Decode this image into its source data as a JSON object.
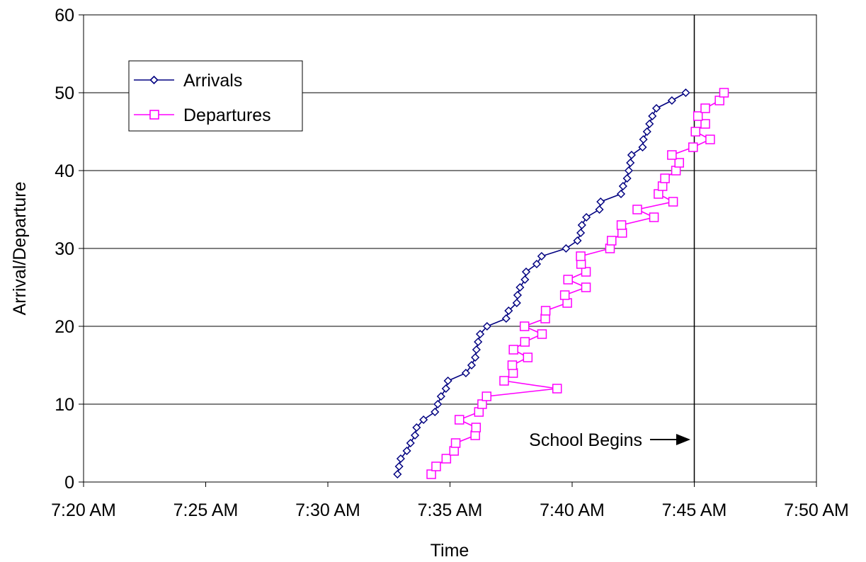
{
  "chart_data": {
    "type": "line",
    "xlabel": "Time",
    "ylabel": "Arrival/Departure",
    "xlim": [
      "7:20 AM",
      "7:50 AM"
    ],
    "ylim": [
      0,
      60
    ],
    "x_ticks": [
      "7:20 AM",
      "7:25 AM",
      "7:30 AM",
      "7:35 AM",
      "7:40 AM",
      "7:45 AM",
      "7:50 AM"
    ],
    "y_ticks": [
      0,
      10,
      20,
      30,
      40,
      50,
      60
    ],
    "grid": "horizontal",
    "legend": "top-left",
    "annotation": {
      "text": "School Begins",
      "time": "7:45 AM"
    },
    "series": [
      {
        "name": "Arrivals",
        "color": "#000080",
        "marker": "diamond",
        "points": [
          [
            "7:32:51",
            1
          ],
          [
            "7:32:55",
            2
          ],
          [
            "7:32:59",
            3
          ],
          [
            "7:33:14",
            4
          ],
          [
            "7:33:23",
            5
          ],
          [
            "7:33:34",
            6
          ],
          [
            "7:33:38",
            7
          ],
          [
            "7:33:55",
            8
          ],
          [
            "7:34:23",
            9
          ],
          [
            "7:34:30",
            10
          ],
          [
            "7:34:38",
            11
          ],
          [
            "7:34:50",
            12
          ],
          [
            "7:34:55",
            13
          ],
          [
            "7:35:39",
            14
          ],
          [
            "7:35:53",
            15
          ],
          [
            "7:36:02",
            16
          ],
          [
            "7:36:05",
            17
          ],
          [
            "7:36:09",
            18
          ],
          [
            "7:36:14",
            19
          ],
          [
            "7:36:31",
            20
          ],
          [
            "7:37:18",
            21
          ],
          [
            "7:37:24",
            22
          ],
          [
            "7:37:44",
            23
          ],
          [
            "7:37:46",
            24
          ],
          [
            "7:37:52",
            25
          ],
          [
            "7:38:04",
            26
          ],
          [
            "7:38:07",
            27
          ],
          [
            "7:38:33",
            28
          ],
          [
            "7:38:45",
            29
          ],
          [
            "7:39:45",
            30
          ],
          [
            "7:40:13",
            31
          ],
          [
            "7:40:21",
            32
          ],
          [
            "7:40:24",
            33
          ],
          [
            "7:40:35",
            34
          ],
          [
            "7:41:07",
            35
          ],
          [
            "7:41:10",
            36
          ],
          [
            "7:42:00",
            37
          ],
          [
            "7:42:05",
            38
          ],
          [
            "7:42:15",
            39
          ],
          [
            "7:42:19",
            40
          ],
          [
            "7:42:23",
            41
          ],
          [
            "7:42:26",
            42
          ],
          [
            "7:42:53",
            43
          ],
          [
            "7:42:55",
            44
          ],
          [
            "7:43:04",
            45
          ],
          [
            "7:43:10",
            46
          ],
          [
            "7:43:17",
            47
          ],
          [
            "7:43:27",
            48
          ],
          [
            "7:44:05",
            49
          ],
          [
            "7:44:39",
            50
          ]
        ]
      },
      {
        "name": "Departures",
        "color": "#ff00ff",
        "marker": "square",
        "points": [
          [
            "7:34:14",
            1
          ],
          [
            "7:34:26",
            2
          ],
          [
            "7:34:51",
            3
          ],
          [
            "7:35:10",
            4
          ],
          [
            "7:35:14",
            5
          ],
          [
            "7:36:02",
            6
          ],
          [
            "7:36:04",
            7
          ],
          [
            "7:35:23",
            8
          ],
          [
            "7:36:11",
            9
          ],
          [
            "7:36:19",
            10
          ],
          [
            "7:36:30",
            11
          ],
          [
            "7:39:23",
            12
          ],
          [
            "7:37:13",
            13
          ],
          [
            "7:37:35",
            14
          ],
          [
            "7:37:33",
            15
          ],
          [
            "7:38:11",
            16
          ],
          [
            "7:37:36",
            17
          ],
          [
            "7:38:04",
            18
          ],
          [
            "7:38:46",
            19
          ],
          [
            "7:38:03",
            20
          ],
          [
            "7:38:54",
            21
          ],
          [
            "7:38:55",
            22
          ],
          [
            "7:39:48",
            23
          ],
          [
            "7:39:42",
            24
          ],
          [
            "7:40:34",
            25
          ],
          [
            "7:39:50",
            26
          ],
          [
            "7:40:34",
            27
          ],
          [
            "7:40:22",
            28
          ],
          [
            "7:40:21",
            29
          ],
          [
            "7:41:33",
            30
          ],
          [
            "7:41:37",
            31
          ],
          [
            "7:42:03",
            32
          ],
          [
            "7:42:01",
            33
          ],
          [
            "7:43:21",
            34
          ],
          [
            "7:42:40",
            35
          ],
          [
            "7:44:08",
            36
          ],
          [
            "7:43:32",
            37
          ],
          [
            "7:43:42",
            38
          ],
          [
            "7:43:48",
            39
          ],
          [
            "7:44:15",
            40
          ],
          [
            "7:44:23",
            41
          ],
          [
            "7:44:05",
            42
          ],
          [
            "7:44:57",
            43
          ],
          [
            "7:45:39",
            44
          ],
          [
            "7:45:03",
            45
          ],
          [
            "7:45:27",
            46
          ],
          [
            "7:45:09",
            47
          ],
          [
            "7:45:27",
            48
          ],
          [
            "7:46:02",
            49
          ],
          [
            "7:46:13",
            50
          ]
        ]
      }
    ]
  }
}
